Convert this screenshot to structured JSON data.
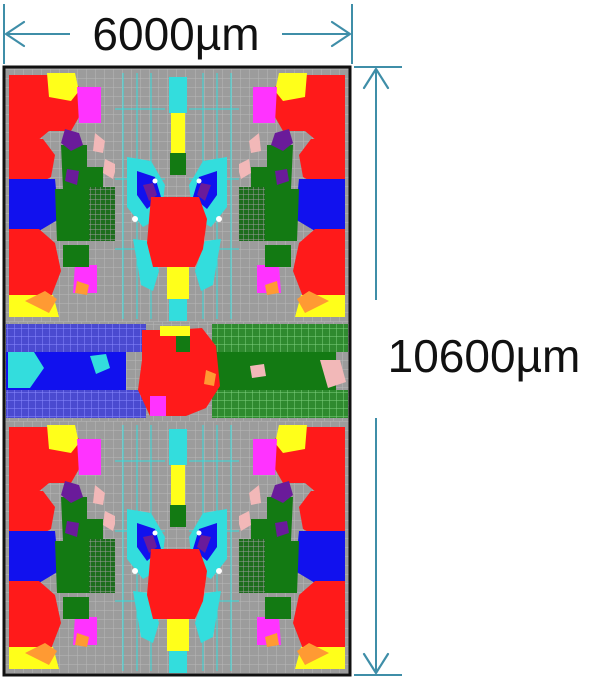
{
  "dimensions": {
    "width_label": "6000µm",
    "height_label": "10600µm"
  },
  "colors": {
    "dimension_line": "#3f8ea8",
    "die_border": "#111111",
    "background_gray": "#9c9c9c",
    "red": "#ff1a1a",
    "yellow": "#ffff1a",
    "blue": "#1111ee",
    "green": "#137a13",
    "magenta": "#ff33ff",
    "cyan": "#33dddd",
    "purple": "#6a1b9a",
    "pink": "#f2b8b8",
    "orange": "#ff9a33",
    "grid_blue": "#5c5ccc",
    "grid_green": "#3f9a3f"
  }
}
